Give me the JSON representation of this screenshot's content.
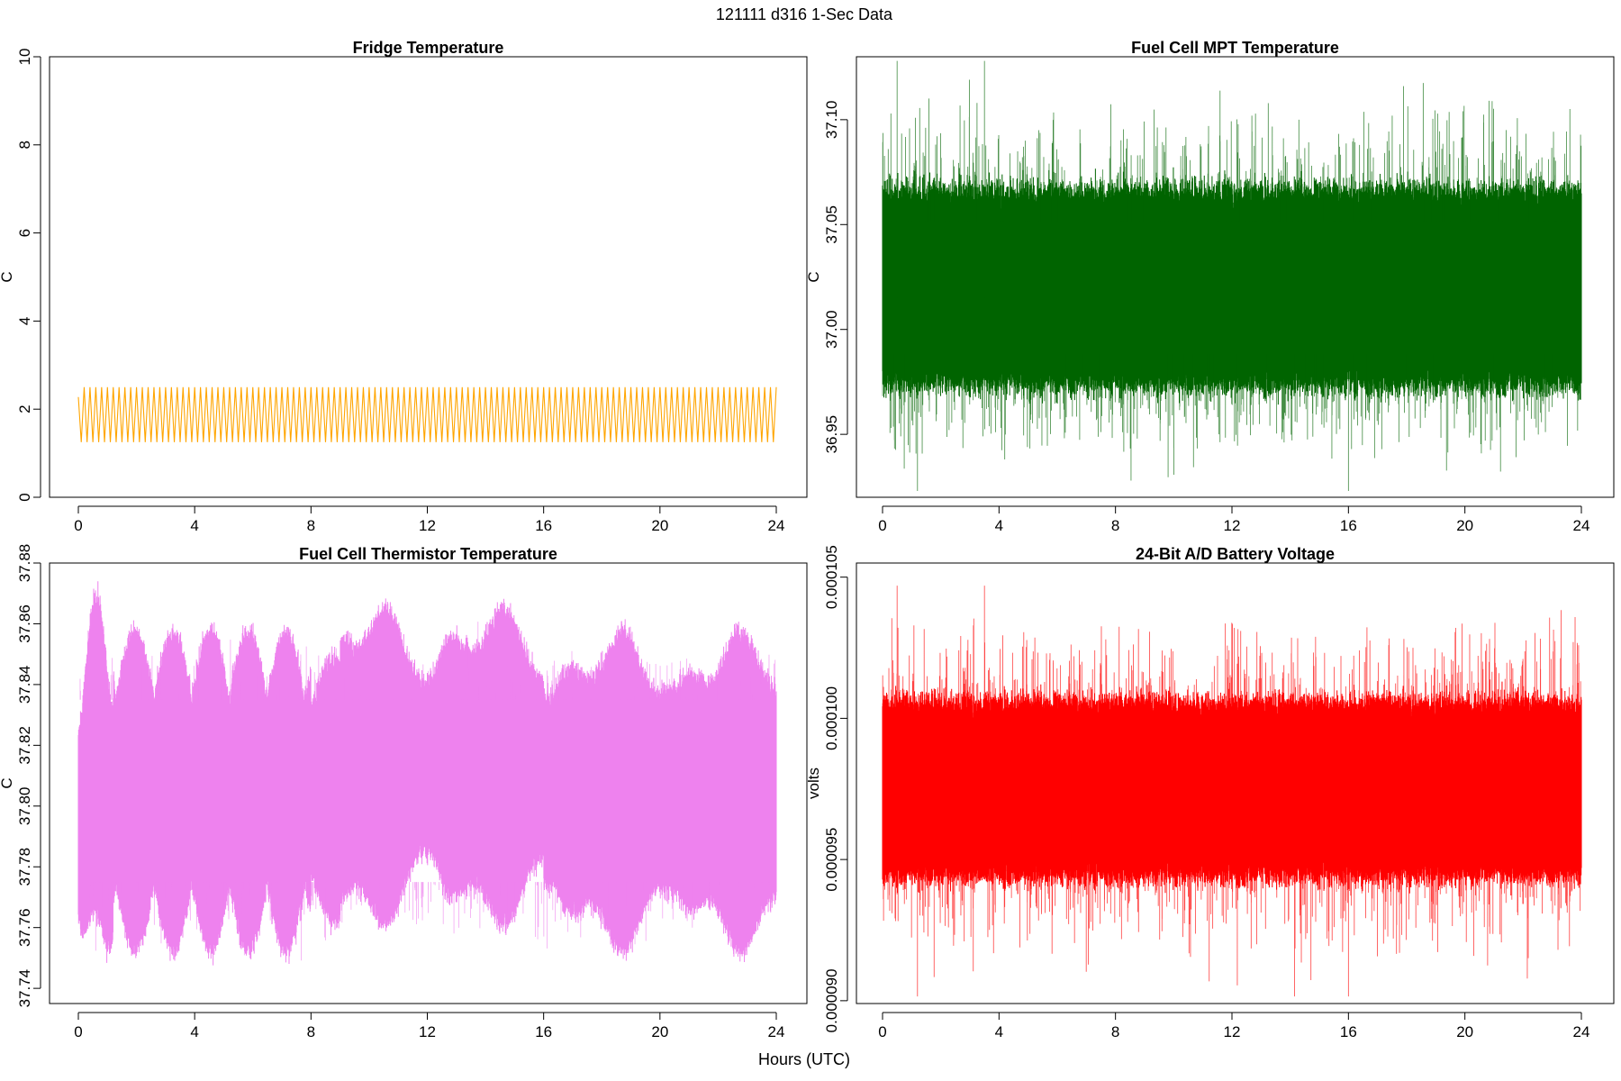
{
  "figure": {
    "title": "121111   d316   1-Sec Data",
    "xlabel": "Hours (UTC)"
  },
  "chart_data": [
    {
      "type": "line",
      "title": "Fridge Temperature",
      "ylabel": "C",
      "color": "#FFA500",
      "xlim": [
        0,
        24
      ],
      "ylim": [
        0,
        10
      ],
      "xticks": [
        0,
        4,
        8,
        12,
        16,
        20,
        24
      ],
      "yticks": [
        0,
        2,
        4,
        6,
        8,
        10
      ],
      "ytick_labels": [
        "0",
        "2",
        "4",
        "6",
        "8",
        "10"
      ],
      "series": [
        {
          "kind": "oscillation",
          "min": 1.25,
          "max": 2.5,
          "cycles": 120
        }
      ]
    },
    {
      "type": "line",
      "title": "Fuel Cell MPT Temperature",
      "ylabel": "C",
      "color": "#006400",
      "xlim": [
        0,
        24
      ],
      "ylim": [
        36.92,
        37.13
      ],
      "xticks": [
        0,
        4,
        8,
        12,
        16,
        20,
        24
      ],
      "yticks": [
        36.95,
        37.0,
        37.05,
        37.1
      ],
      "ytick_labels": [
        "36.95",
        "37.00",
        "37.05",
        "37.10"
      ],
      "series": [
        {
          "kind": "noise-band",
          "center": 37.015,
          "band_low": 36.975,
          "band_high": 37.065,
          "min": 36.923,
          "max": 37.128
        }
      ]
    },
    {
      "type": "line",
      "title": "Fuel Cell Thermistor Temperature",
      "ylabel": "C",
      "color": "#EE82EE",
      "xlim": [
        0,
        24
      ],
      "ylim": [
        37.735,
        37.88
      ],
      "xticks": [
        0,
        4,
        8,
        12,
        16,
        20,
        24
      ],
      "yticks": [
        37.74,
        37.76,
        37.78,
        37.8,
        37.82,
        37.84,
        37.86,
        37.88
      ],
      "ytick_labels": [
        "37.74",
        "37.76",
        "37.78",
        "37.80",
        "37.82",
        "37.84",
        "37.86",
        "37.88"
      ],
      "series": [
        {
          "kind": "modulated-band",
          "center": 37.805,
          "min": 37.737,
          "max": 37.874
        }
      ]
    },
    {
      "type": "line",
      "title": "24-Bit A/D Battery Voltage",
      "ylabel": "volts",
      "color": "#FF0000",
      "xlim": [
        0,
        24
      ],
      "ylim": [
        8.99e-05,
        0.0001055
      ],
      "xticks": [
        0,
        4,
        8,
        12,
        16,
        20,
        24
      ],
      "yticks": [
        9e-05,
        9.5e-05,
        0.0001,
        0.000105
      ],
      "ytick_labels": [
        "0.000090",
        "0.000095",
        "0.000100",
        "0.000105"
      ],
      "series": [
        {
          "kind": "noise-band",
          "center": 9.75e-05,
          "band_low": 9.45e-05,
          "band_high": 0.0001005,
          "min": 9.015e-05,
          "max": 0.0001047
        }
      ]
    }
  ]
}
